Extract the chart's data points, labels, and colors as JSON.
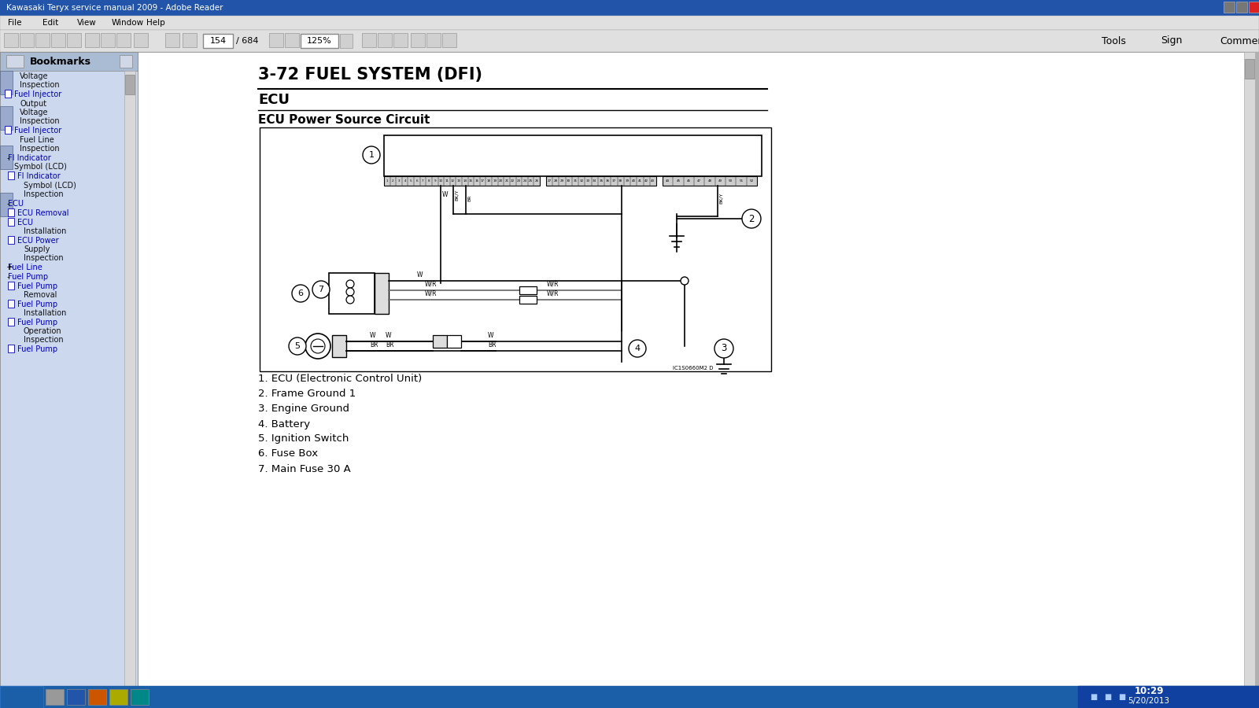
{
  "title_bar": "Kawasaki Teryx service manual 2009 - Adobe Reader",
  "section_title": "3-72 FUEL SYSTEM (DFI)",
  "subsection": "ECU",
  "diagram_title": "ECU Power Source Circuit",
  "legend": [
    "1. ECU (Electronic Control Unit)",
    "2. Frame Ground 1",
    "3. Engine Ground",
    "4. Battery",
    "5. Ignition Switch",
    "6. Fuse Box",
    "7. Main Fuse 30 A"
  ],
  "bg_color": "#b0b0b0",
  "sidebar_color": "#ccd8ee",
  "paper_color": "#ffffff",
  "toolbar_color": "#e0e0e0",
  "taskbar_color": "#1a5fa8",
  "title_bar_color": "#2255aa",
  "text_color": "#000000"
}
